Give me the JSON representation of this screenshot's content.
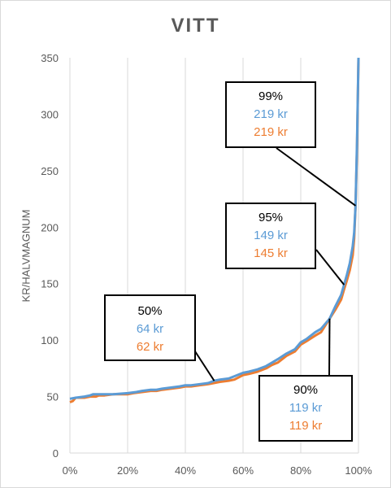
{
  "chart_data": {
    "type": "line",
    "title": "VITT",
    "ylabel": "KR/HALVMAGNUM",
    "xlabel": "",
    "xlim": [
      0,
      100
    ],
    "ylim": [
      0,
      350
    ],
    "x_ticks": [
      "0%",
      "20%",
      "40%",
      "60%",
      "80%",
      "100%"
    ],
    "y_ticks": [
      "0",
      "50",
      "100",
      "150",
      "200",
      "250",
      "300",
      "350"
    ],
    "grid": "vertical",
    "legend": "none",
    "series": [
      {
        "color": "#ed7d31",
        "points": [
          [
            0,
            45
          ],
          [
            1,
            46
          ],
          [
            2,
            49
          ],
          [
            5,
            49
          ],
          [
            7,
            50
          ],
          [
            9,
            50
          ],
          [
            10,
            51
          ],
          [
            12,
            51
          ],
          [
            15,
            52
          ],
          [
            20,
            52
          ],
          [
            22,
            53
          ],
          [
            25,
            54
          ],
          [
            28,
            55
          ],
          [
            30,
            55
          ],
          [
            32,
            56
          ],
          [
            35,
            57
          ],
          [
            38,
            58
          ],
          [
            40,
            59
          ],
          [
            42,
            59
          ],
          [
            45,
            60
          ],
          [
            48,
            61
          ],
          [
            50,
            62
          ],
          [
            52,
            63
          ],
          [
            55,
            64
          ],
          [
            57,
            65
          ],
          [
            60,
            69
          ],
          [
            62,
            70
          ],
          [
            65,
            72
          ],
          [
            68,
            75
          ],
          [
            70,
            78
          ],
          [
            72,
            80
          ],
          [
            75,
            86
          ],
          [
            78,
            90
          ],
          [
            80,
            96
          ],
          [
            82,
            99
          ],
          [
            85,
            104
          ],
          [
            87,
            107
          ],
          [
            90,
            119
          ],
          [
            92,
            127
          ],
          [
            94,
            136
          ],
          [
            95,
            145
          ],
          [
            96,
            153
          ],
          [
            97,
            162
          ],
          [
            98,
            175
          ],
          [
            98.5,
            190
          ],
          [
            99,
            219
          ],
          [
            99.5,
            270
          ],
          [
            100,
            350
          ]
        ]
      },
      {
        "color": "#5b9bd5",
        "points": [
          [
            0,
            48
          ],
          [
            2,
            49
          ],
          [
            5,
            50
          ],
          [
            7,
            51
          ],
          [
            8,
            52
          ],
          [
            10,
            52
          ],
          [
            15,
            52
          ],
          [
            20,
            53
          ],
          [
            23,
            54
          ],
          [
            25,
            55
          ],
          [
            28,
            56
          ],
          [
            30,
            56
          ],
          [
            32,
            57
          ],
          [
            35,
            58
          ],
          [
            38,
            59
          ],
          [
            40,
            60
          ],
          [
            42,
            60
          ],
          [
            45,
            61
          ],
          [
            48,
            62
          ],
          [
            50,
            64
          ],
          [
            52,
            65
          ],
          [
            55,
            66
          ],
          [
            57,
            68
          ],
          [
            60,
            71
          ],
          [
            62,
            72
          ],
          [
            65,
            74
          ],
          [
            68,
            77
          ],
          [
            70,
            80
          ],
          [
            72,
            83
          ],
          [
            75,
            88
          ],
          [
            78,
            92
          ],
          [
            80,
            98
          ],
          [
            82,
            101
          ],
          [
            85,
            107
          ],
          [
            87,
            110
          ],
          [
            90,
            119
          ],
          [
            92,
            130
          ],
          [
            94,
            140
          ],
          [
            95,
            149
          ],
          [
            96,
            158
          ],
          [
            97,
            168
          ],
          [
            98,
            183
          ],
          [
            98.5,
            195
          ],
          [
            99,
            219
          ],
          [
            99.5,
            275
          ],
          [
            100,
            350
          ]
        ]
      }
    ],
    "annotations": [
      {
        "pct": "50%",
        "blue": "64 kr",
        "orange": "62 kr"
      },
      {
        "pct": "90%",
        "blue": "119 kr",
        "orange": "119 kr"
      },
      {
        "pct": "95%",
        "blue": "149 kr",
        "orange": "145 kr"
      },
      {
        "pct": "99%",
        "blue": "219 kr",
        "orange": "219 kr"
      }
    ]
  }
}
